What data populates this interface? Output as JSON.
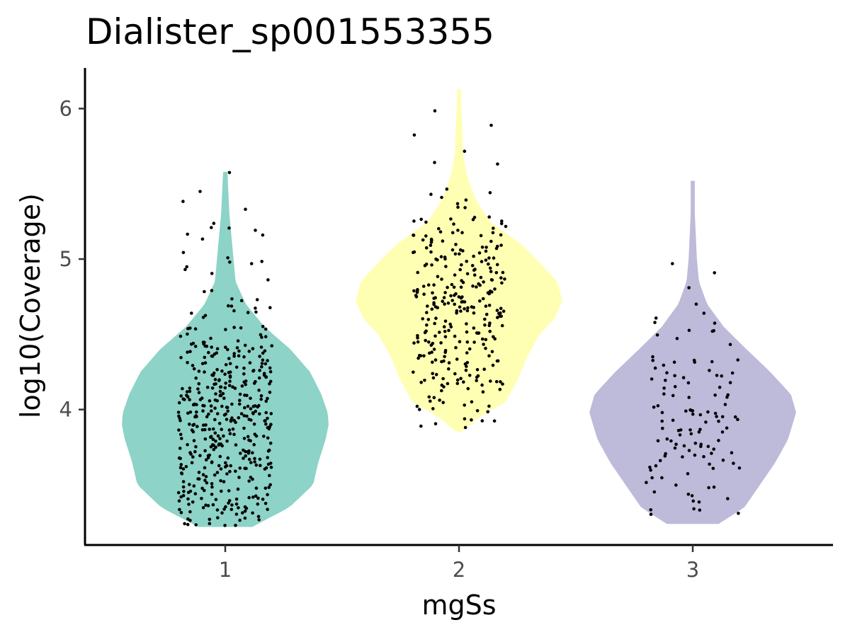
{
  "chart_data": {
    "type": "violin",
    "title": "Dialister_sp001553355",
    "xlabel": "mgSs",
    "ylabel": "log10(Coverage)",
    "categories": [
      "1",
      "2",
      "3"
    ],
    "yticks": [
      "4",
      "5",
      "6"
    ],
    "ylim": [
      3.1,
      6.27
    ],
    "grid": false,
    "legend": "none",
    "colors": {
      "1": "#8dd3c7",
      "2": "#ffffb3",
      "3": "#bebada",
      "points": "#000000",
      "axis": "#000000"
    },
    "series": [
      {
        "category": "1",
        "min": 3.22,
        "max": 5.58,
        "density": [
          [
            3.22,
            0.26
          ],
          [
            3.35,
            0.62
          ],
          [
            3.5,
            0.85
          ],
          [
            3.65,
            0.9
          ],
          [
            3.8,
            0.97
          ],
          [
            3.9,
            1.0
          ],
          [
            3.98,
            0.99
          ],
          [
            4.1,
            0.93
          ],
          [
            4.25,
            0.82
          ],
          [
            4.4,
            0.63
          ],
          [
            4.55,
            0.38
          ],
          [
            4.7,
            0.2
          ],
          [
            4.85,
            0.1
          ],
          [
            5.0,
            0.08
          ],
          [
            5.15,
            0.06
          ],
          [
            5.3,
            0.04
          ],
          [
            5.45,
            0.03
          ],
          [
            5.58,
            0.02
          ]
        ],
        "n_points": 460
      },
      {
        "category": "2",
        "min": 3.85,
        "max": 6.13,
        "density": [
          [
            3.85,
            0.02
          ],
          [
            3.95,
            0.2
          ],
          [
            4.05,
            0.45
          ],
          [
            4.2,
            0.57
          ],
          [
            4.35,
            0.66
          ],
          [
            4.5,
            0.78
          ],
          [
            4.6,
            0.92
          ],
          [
            4.72,
            1.0
          ],
          [
            4.85,
            0.95
          ],
          [
            5.0,
            0.75
          ],
          [
            5.1,
            0.6
          ],
          [
            5.25,
            0.3
          ],
          [
            5.4,
            0.16
          ],
          [
            5.55,
            0.08
          ],
          [
            5.7,
            0.04
          ],
          [
            5.9,
            0.03
          ],
          [
            6.05,
            0.02
          ],
          [
            6.13,
            0.02
          ]
        ],
        "n_points": 300
      },
      {
        "category": "3",
        "min": 3.24,
        "max": 5.52,
        "density": [
          [
            3.24,
            0.25
          ],
          [
            3.35,
            0.5
          ],
          [
            3.5,
            0.65
          ],
          [
            3.65,
            0.8
          ],
          [
            3.8,
            0.92
          ],
          [
            3.98,
            1.0
          ],
          [
            4.1,
            0.95
          ],
          [
            4.25,
            0.75
          ],
          [
            4.4,
            0.52
          ],
          [
            4.55,
            0.3
          ],
          [
            4.7,
            0.14
          ],
          [
            4.85,
            0.06
          ],
          [
            5.0,
            0.04
          ],
          [
            5.15,
            0.03
          ],
          [
            5.3,
            0.02
          ],
          [
            5.52,
            0.02
          ]
        ],
        "n_points": 120
      }
    ]
  }
}
